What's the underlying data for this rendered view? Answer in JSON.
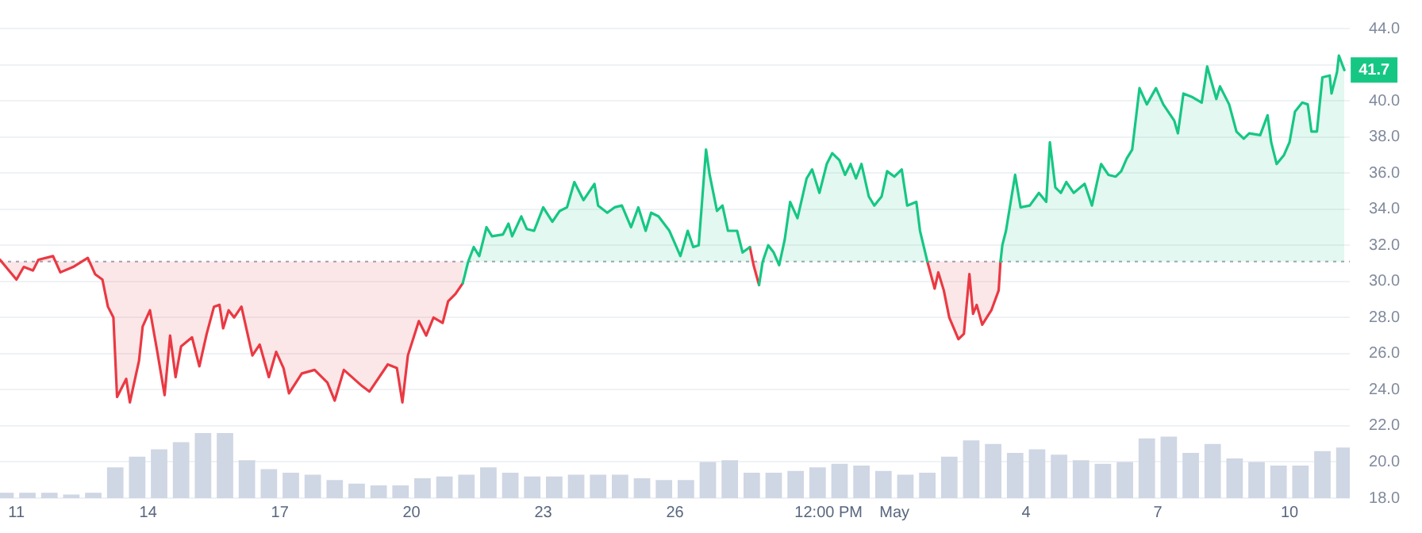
{
  "chart_data": {
    "type": "area",
    "marker": "none",
    "grid": "y",
    "legend": false,
    "ylim": [
      18,
      44
    ],
    "xlim": [
      "--04-10T15:00",
      "--05-11T09:00"
    ],
    "xticks": [
      {
        "value": "--04-11",
        "label": "11"
      },
      {
        "value": "--04-14",
        "label": "14"
      },
      {
        "value": "--04-17",
        "label": "17"
      },
      {
        "value": "--04-20",
        "label": "20"
      },
      {
        "value": "--04-23",
        "label": "23"
      },
      {
        "value": "--04-26",
        "label": "26"
      },
      {
        "value": "--04-29T12:00",
        "label": "12:00 PM"
      },
      {
        "value": "--05-01",
        "label": "May"
      },
      {
        "value": "--05-04",
        "label": "4"
      },
      {
        "value": "--05-07",
        "label": "7"
      },
      {
        "value": "--05-10",
        "label": "10"
      }
    ],
    "yticks": [
      {
        "value": 18,
        "label": "18.0"
      },
      {
        "value": 20,
        "label": "20.0"
      },
      {
        "value": 22,
        "label": "22.0"
      },
      {
        "value": 24,
        "label": "24.0"
      },
      {
        "value": 26,
        "label": "26.0"
      },
      {
        "value": 28,
        "label": "28.0"
      },
      {
        "value": 30,
        "label": "30.0"
      },
      {
        "value": 32,
        "label": "32.0"
      },
      {
        "value": 34,
        "label": "34.0"
      },
      {
        "value": 36,
        "label": "36.0"
      },
      {
        "value": 38,
        "label": "38.0"
      },
      {
        "value": 40,
        "label": "40.0"
      },
      {
        "value": 42,
        "label": null
      },
      {
        "value": 44,
        "label": "44.0"
      }
    ],
    "ref_lines": [
      {
        "axis": "y",
        "value": 31.1,
        "color": "#a0a6b5",
        "line_style": "dotted"
      }
    ],
    "x": [
      "--04-10T15:00",
      "--04-11T00:00",
      "--04-11T04:00",
      "--04-11T09:00",
      "--04-11T12:00",
      "--04-11T20:00",
      "--04-12T00:00",
      "--04-12T07:00",
      "--04-12T15:00",
      "--04-12T19:00",
      "--04-12T23:00",
      "--04-13T02:00",
      "--04-13T05:00",
      "--04-13T07:00",
      "--04-13T12:00",
      "--04-13T14:00",
      "--04-13T19:00",
      "--04-13T21:00",
      "--04-14T01:00",
      "--04-14T05:00",
      "--04-14T09:00",
      "--04-14T12:00",
      "--04-14T15:00",
      "--04-14T18:00",
      "--04-15T00:00",
      "--04-15T04:00",
      "--04-15T08:00",
      "--04-15T12:00",
      "--04-15T15:00",
      "--04-15T17:00",
      "--04-15T20:00",
      "--04-15T23:00",
      "--04-16T03:00",
      "--04-16T09:00",
      "--04-16T13:00",
      "--04-16T18:00",
      "--04-16T22:00",
      "--04-17T02:00",
      "--04-17T05:00",
      "--04-17T12:00",
      "--04-17T19:00",
      "--04-18T02:00",
      "--04-18T06:00",
      "--04-18T11:00",
      "--04-18T21:00",
      "--04-19T01:00",
      "--04-19T11:00",
      "--04-19T16:00",
      "--04-19T19:00",
      "--04-19T22:00",
      "--04-20T04:00",
      "--04-20T08:00",
      "--04-20T12:00",
      "--04-20T17:00",
      "--04-20T20:00",
      "--04-21T00:00",
      "--04-21T04:00",
      "--04-21T07:00",
      "--04-21T10:00",
      "--04-21T13:00",
      "--04-21T17:00",
      "--04-21T20:00",
      "--04-22T02:00",
      "--04-22T05:00",
      "--04-22T07:00",
      "--04-22T12:00",
      "--04-22T15:00",
      "--04-22T19:00",
      "--04-23T00:00",
      "--04-23T05:00",
      "--04-23T09:00",
      "--04-23T13:00",
      "--04-23T17:00",
      "--04-23T22:00",
      "--04-24T04:00",
      "--04-24T06:00",
      "--04-24T11:00",
      "--04-24T15:00",
      "--04-24T19:00",
      "--04-25T00:00",
      "--04-25T04:00",
      "--04-25T08:00",
      "--04-25T11:00",
      "--04-25T15:00",
      "--04-25T21:00",
      "--04-26T03:00",
      "--04-26T07:00",
      "--04-26T10:00",
      "--04-26T13:00",
      "--04-26T17:00",
      "--04-26T19:00",
      "--04-26T23:00",
      "--04-27T02:00",
      "--04-27T05:00",
      "--04-27T10:00",
      "--04-27T13:00",
      "--04-27T17:00",
      "--04-27T19:00",
      "--04-27T22:00",
      "--04-28T00:00",
      "--04-28T03:00",
      "--04-28T06:00",
      "--04-28T09:00",
      "--04-28T12:00",
      "--04-28T15:00",
      "--04-28T19:00",
      "--04-29T00:00",
      "--04-29T03:00",
      "--04-29T07:00",
      "--04-29T11:00",
      "--04-29T14:00",
      "--04-29T18:00",
      "--04-29T21:00",
      "--04-30T00:00",
      "--04-30T03:00",
      "--04-30T06:00",
      "--04-30T10:00",
      "--04-30T13:00",
      "--04-30T17:00",
      "--04-30T20:00",
      "--05-01T00:00",
      "--05-01T04:00",
      "--05-01T07:00",
      "--05-01T12:00",
      "--05-01T14:00",
      "--05-01T18:00",
      "--05-01T22:00",
      "--05-02T00:00",
      "--05-02T03:00",
      "--05-02T06:00",
      "--05-02T11:00",
      "--05-02T14:00",
      "--05-02T17:00",
      "--05-02T19:00",
      "--05-02T21:00",
      "--05-03T00:00",
      "--05-03T05:00",
      "--05-03T09:00",
      "--05-03T10:00",
      "--05-03T11:00",
      "--05-03T13:00",
      "--05-03T18:00",
      "--05-03T21:00",
      "--05-04T02:00",
      "--05-04T07:00",
      "--05-04T11:00",
      "--05-04T13:00",
      "--05-04T16:00",
      "--05-04T19:00",
      "--05-04T22:00",
      "--05-05T02:00",
      "--05-05T08:00",
      "--05-05T12:00",
      "--05-05T17:00",
      "--05-05T21:00",
      "--05-06T01:00",
      "--05-06T04:00",
      "--05-06T07:00",
      "--05-06T10:00",
      "--05-06T14:00",
      "--05-06T18:00",
      "--05-06T23:00",
      "--05-07T03:00",
      "--05-07T09:00",
      "--05-07T11:00",
      "--05-07T14:00",
      "--05-07T19:00",
      "--05-08T00:00",
      "--05-08T03:00",
      "--05-08T08:00",
      "--05-08T10:00",
      "--05-08T15:00",
      "--05-08T19:00",
      "--05-08T23:00",
      "--05-09T02:00",
      "--05-09T08:00",
      "--05-09T12:00",
      "--05-09T14:00",
      "--05-09T17:00",
      "--05-09T21:00",
      "--05-10T00:00",
      "--05-10T03:00",
      "--05-10T07:00",
      "--05-10T10:00",
      "--05-10T12:00",
      "--05-10T15:00",
      "--05-10T18:00",
      "--05-10T22:00",
      "--05-10T23:00",
      "--05-11T02:00",
      "--05-11T03:00",
      "--05-11T06:00"
    ],
    "series": [
      {
        "type": "bar",
        "color": "#cfd6e4",
        "x": [
          "--04-10T18:00",
          "--04-11T06:00",
          "--04-11T18:00",
          "--04-12T06:00",
          "--04-12T18:00",
          "--04-13T06:00",
          "--04-13T18:00",
          "--04-14T06:00",
          "--04-14T18:00",
          "--04-15T06:00",
          "--04-15T18:00",
          "--04-16T06:00",
          "--04-16T18:00",
          "--04-17T06:00",
          "--04-17T18:00",
          "--04-18T06:00",
          "--04-18T18:00",
          "--04-19T06:00",
          "--04-19T18:00",
          "--04-20T06:00",
          "--04-20T18:00",
          "--04-21T06:00",
          "--04-21T18:00",
          "--04-22T06:00",
          "--04-22T18:00",
          "--04-23T06:00",
          "--04-23T18:00",
          "--04-24T06:00",
          "--04-24T18:00",
          "--04-25T06:00",
          "--04-25T18:00",
          "--04-26T06:00",
          "--04-26T18:00",
          "--04-27T06:00",
          "--04-27T18:00",
          "--04-28T06:00",
          "--04-28T18:00",
          "--04-29T06:00",
          "--04-29T18:00",
          "--04-30T06:00",
          "--04-30T18:00",
          "--05-01T06:00",
          "--05-01T18:00",
          "--05-02T06:00",
          "--05-02T18:00",
          "--05-03T06:00",
          "--05-03T18:00",
          "--05-04T06:00",
          "--05-04T18:00",
          "--05-05T06:00",
          "--05-05T18:00",
          "--05-06T06:00",
          "--05-06T18:00",
          "--05-07T06:00",
          "--05-07T18:00",
          "--05-08T06:00",
          "--05-08T18:00",
          "--05-09T06:00",
          "--05-09T18:00",
          "--05-10T06:00",
          "--05-10T18:00",
          "--05-11T06:00"
        ],
        "values": [
          18.3,
          18.3,
          18.3,
          18.2,
          18.3,
          19.7,
          20.3,
          20.7,
          21.1,
          21.6,
          21.6,
          20.1,
          19.6,
          19.4,
          19.3,
          19.0,
          18.8,
          18.7,
          18.7,
          19.1,
          19.2,
          19.3,
          19.7,
          19.4,
          19.2,
          19.2,
          19.3,
          19.3,
          19.3,
          19.1,
          19.0,
          19.0,
          20.0,
          20.1,
          19.4,
          19.4,
          19.5,
          19.7,
          19.9,
          19.8,
          19.5,
          19.3,
          19.4,
          20.3,
          21.2,
          21.0,
          20.5,
          20.7,
          20.4,
          20.1,
          19.9,
          20.0,
          21.3,
          21.4,
          20.5,
          21.0,
          20.2,
          20.0,
          19.8,
          19.8,
          20.6,
          20.8
        ]
      },
      {
        "color": "#16c784",
        "value_labels": [
          null,
          null,
          null,
          null,
          null,
          null,
          null,
          null,
          null,
          null,
          null,
          null,
          null,
          null,
          null,
          null,
          null,
          null,
          null,
          null,
          null,
          null,
          null,
          null,
          null,
          null,
          null,
          null,
          null,
          null,
          null,
          null,
          null,
          null,
          null,
          null,
          null,
          null,
          null,
          null,
          null,
          null,
          null,
          null,
          null,
          null,
          null,
          null,
          null,
          null,
          null,
          null,
          null,
          null,
          null,
          null,
          null,
          null,
          null,
          null,
          null,
          null,
          null,
          null,
          null,
          null,
          null,
          null,
          null,
          null,
          null,
          null,
          null,
          null,
          null,
          null,
          null,
          null,
          null,
          null,
          null,
          null,
          null,
          null,
          null,
          null,
          null,
          null,
          null,
          null,
          null,
          null,
          null,
          null,
          null,
          null,
          null,
          null,
          null,
          null,
          null,
          null,
          null,
          null,
          null,
          null,
          null,
          null,
          null,
          null,
          null,
          null,
          null,
          null,
          null,
          null,
          null,
          null,
          null,
          null,
          null,
          null,
          null,
          null,
          null,
          null,
          null,
          null,
          null,
          null,
          null,
          null,
          null,
          null,
          null,
          null,
          null,
          null,
          null,
          null,
          null,
          null,
          null,
          null,
          null,
          null,
          null,
          null,
          null,
          null,
          null,
          null,
          null,
          null,
          null,
          null,
          null,
          null,
          null,
          null,
          null,
          null,
          null,
          null,
          null,
          null,
          null,
          null,
          null,
          null,
          null,
          null,
          null,
          null,
          null,
          null,
          null,
          null,
          null,
          null,
          null,
          null,
          null,
          null,
          null,
          null,
          null,
          null,
          null,
          null,
          null,
          "41.7"
        ],
        "values": [
          null,
          null,
          null,
          null,
          null,
          null,
          null,
          null,
          null,
          null,
          null,
          null,
          null,
          null,
          null,
          null,
          null,
          null,
          null,
          null,
          null,
          null,
          null,
          null,
          null,
          null,
          null,
          null,
          null,
          null,
          null,
          null,
          null,
          null,
          null,
          null,
          null,
          null,
          null,
          null,
          null,
          null,
          null,
          null,
          null,
          null,
          null,
          null,
          null,
          null,
          null,
          null,
          null,
          null,
          null,
          null,
          29.9,
          31.1,
          31.9,
          31.4,
          33.0,
          32.5,
          32.6,
          33.2,
          32.5,
          33.6,
          32.9,
          32.8,
          34.1,
          33.3,
          33.9,
          34.1,
          35.5,
          34.5,
          35.4,
          34.2,
          33.8,
          34.1,
          34.2,
          33.0,
          34.1,
          32.8,
          33.8,
          33.6,
          32.8,
          31.4,
          32.8,
          31.9,
          32.0,
          37.3,
          35.9,
          33.9,
          34.2,
          32.8,
          32.8,
          31.6,
          31.9,
          null,
          29.8,
          31.1,
          32.0,
          31.6,
          30.9,
          32.3,
          34.4,
          33.5,
          35.7,
          36.2,
          34.9,
          36.5,
          37.1,
          36.7,
          35.9,
          36.5,
          35.7,
          36.5,
          34.7,
          34.2,
          34.7,
          36.1,
          35.8,
          36.2,
          34.2,
          34.4,
          32.8,
          31.1,
          null,
          null,
          null,
          null,
          null,
          null,
          null,
          null,
          null,
          null,
          null,
          null,
          31.1,
          32.0,
          32.8,
          35.9,
          34.1,
          34.2,
          34.9,
          34.4,
          37.7,
          35.2,
          34.9,
          35.5,
          34.9,
          35.4,
          34.2,
          36.5,
          35.9,
          35.8,
          36.1,
          36.8,
          37.3,
          40.7,
          39.8,
          40.7,
          39.8,
          38.9,
          38.2,
          40.4,
          40.2,
          39.9,
          41.9,
          40.1,
          40.8,
          39.8,
          38.3,
          37.9,
          38.2,
          38.1,
          39.2,
          37.7,
          36.5,
          37.0,
          37.7,
          39.4,
          39.9,
          39.8,
          38.3,
          38.3,
          41.3,
          41.4,
          40.4,
          41.6,
          42.5,
          41.7
        ]
      },
      {
        "color": "#ea3943",
        "values": [
          31.2,
          30.1,
          30.8,
          30.6,
          31.2,
          31.4,
          30.5,
          30.8,
          31.3,
          30.4,
          30.1,
          28.6,
          28.0,
          23.6,
          24.6,
          23.3,
          25.6,
          27.5,
          28.4,
          26.1,
          23.7,
          27.0,
          24.7,
          26.4,
          26.9,
          25.3,
          27.1,
          28.6,
          28.7,
          27.4,
          28.4,
          28.0,
          28.6,
          25.9,
          26.5,
          24.7,
          26.1,
          25.2,
          23.8,
          24.9,
          25.1,
          24.4,
          23.4,
          25.1,
          24.2,
          23.9,
          25.4,
          25.2,
          23.3,
          25.9,
          27.8,
          27.0,
          28.0,
          27.7,
          28.9,
          29.3,
          29.9,
          null,
          null,
          null,
          null,
          null,
          null,
          null,
          null,
          null,
          null,
          null,
          null,
          null,
          null,
          null,
          null,
          null,
          null,
          null,
          null,
          null,
          null,
          null,
          null,
          null,
          null,
          null,
          null,
          null,
          null,
          null,
          null,
          null,
          null,
          null,
          null,
          null,
          null,
          null,
          31.9,
          30.9,
          29.8,
          null,
          null,
          null,
          null,
          null,
          null,
          null,
          null,
          null,
          null,
          null,
          null,
          null,
          null,
          null,
          null,
          null,
          null,
          null,
          null,
          null,
          null,
          null,
          null,
          null,
          null,
          31.1,
          29.6,
          30.5,
          29.5,
          28.0,
          26.8,
          27.1,
          30.4,
          28.2,
          28.7,
          27.6,
          28.4,
          29.5,
          31.1,
          null,
          null,
          null,
          null,
          null,
          null,
          null,
          null,
          null,
          null,
          null,
          null,
          null,
          null,
          null,
          null,
          null,
          null,
          null,
          null,
          null,
          null,
          null,
          null,
          null,
          null,
          null,
          null,
          null,
          null,
          null,
          null,
          null,
          null,
          null,
          null,
          null,
          null,
          null,
          null,
          null,
          null,
          null,
          null,
          null,
          null,
          null,
          null,
          null,
          null,
          null,
          null,
          null
        ]
      }
    ]
  }
}
